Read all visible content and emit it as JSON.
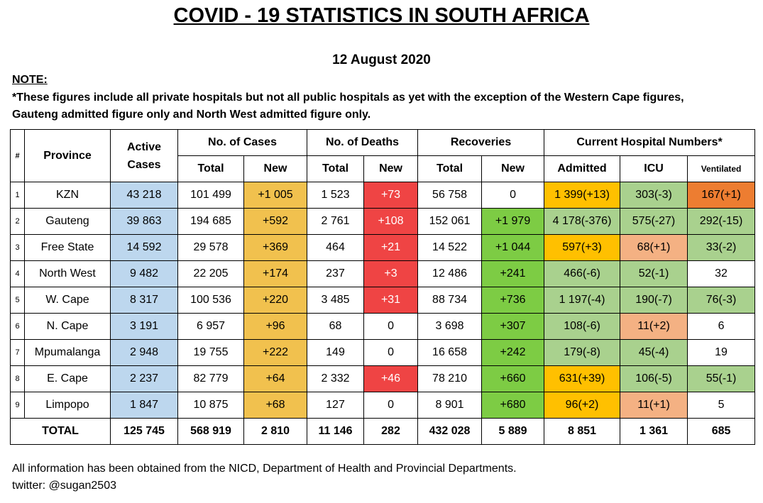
{
  "title": "COVID - 19 STATISTICS IN SOUTH AFRICA",
  "date": "12 August 2020",
  "note_label": "NOTE:",
  "note_line1": "*These figures include all private hospitals but not all public hospitals as yet with the exception of the Western Cape figures,",
  "note_line2": "Gauteng admitted figure only and North West admitted figure only.",
  "headers": {
    "hash": "#",
    "province": "Province",
    "active_line1": "Active",
    "active_line2": "Cases",
    "cases": "No. of Cases",
    "deaths": "No. of Deaths",
    "recoveries": "Recoveries",
    "hospital": "Current Hospital Numbers*",
    "total": "Total",
    "new": "New",
    "admitted": "Admitted",
    "icu": "ICU",
    "ventilated": "Ventilated"
  },
  "rows": [
    {
      "idx": "1",
      "province": "KZN",
      "active": "43 218",
      "cases_total": "101 499",
      "cases_new": "+1 005",
      "deaths_total": "1 523",
      "deaths_new": "+73",
      "rec_total": "56 758",
      "rec_new": "0",
      "admitted": "1 399(+13)",
      "icu": "303(-3)",
      "ventilated": "167(+1)"
    },
    {
      "idx": "2",
      "province": "Gauteng",
      "active": "39 863",
      "cases_total": "194 685",
      "cases_new": "+592",
      "deaths_total": "2 761",
      "deaths_new": "+108",
      "rec_total": "152 061",
      "rec_new": "+1 979",
      "admitted": "4 178(-376)",
      "icu": "575(-27)",
      "ventilated": "292(-15)"
    },
    {
      "idx": "3",
      "province": "Free State",
      "active": "14 592",
      "cases_total": "29 578",
      "cases_new": "+369",
      "deaths_total": "464",
      "deaths_new": "+21",
      "rec_total": "14 522",
      "rec_new": "+1 044",
      "admitted": "597(+3)",
      "icu": "68(+1)",
      "ventilated": "33(-2)"
    },
    {
      "idx": "4",
      "province": "North West",
      "active": "9 482",
      "cases_total": "22 205",
      "cases_new": "+174",
      "deaths_total": "237",
      "deaths_new": "+3",
      "rec_total": "12 486",
      "rec_new": "+241",
      "admitted": "466(-6)",
      "icu": "52(-1)",
      "ventilated": "32"
    },
    {
      "idx": "5",
      "province": "W. Cape",
      "active": "8 317",
      "cases_total": "100 536",
      "cases_new": "+220",
      "deaths_total": "3 485",
      "deaths_new": "+31",
      "rec_total": "88 734",
      "rec_new": "+736",
      "admitted": "1 197(-4)",
      "icu": "190(-7)",
      "ventilated": "76(-3)"
    },
    {
      "idx": "6",
      "province": "N. Cape",
      "active": "3 191",
      "cases_total": "6 957",
      "cases_new": "+96",
      "deaths_total": "68",
      "deaths_new": "0",
      "rec_total": "3 698",
      "rec_new": "+307",
      "admitted": "108(-6)",
      "icu": "11(+2)",
      "ventilated": "6"
    },
    {
      "idx": "7",
      "province": "Mpumalanga",
      "active": "2 948",
      "cases_total": "19 755",
      "cases_new": "+222",
      "deaths_total": "149",
      "deaths_new": "0",
      "rec_total": "16 658",
      "rec_new": "+242",
      "admitted": "179(-8)",
      "icu": "45(-4)",
      "ventilated": "19"
    },
    {
      "idx": "8",
      "province": "E. Cape",
      "active": "2 237",
      "cases_total": "82 779",
      "cases_new": "+64",
      "deaths_total": "2 332",
      "deaths_new": "+46",
      "rec_total": "78 210",
      "rec_new": "+660",
      "admitted": "631(+39)",
      "icu": "106(-5)",
      "ventilated": "55(-1)"
    },
    {
      "idx": "9",
      "province": "Limpopo",
      "active": "1 847",
      "cases_total": "10 875",
      "cases_new": "+68",
      "deaths_total": "127",
      "deaths_new": "0",
      "rec_total": "8 901",
      "rec_new": "+680",
      "admitted": "96(+2)",
      "icu": "11(+1)",
      "ventilated": "5"
    }
  ],
  "totals": {
    "label": "TOTAL",
    "active": "125 745",
    "cases_total": "568 919",
    "cases_new": "2 810",
    "deaths_total": "11 146",
    "deaths_new": "282",
    "rec_total": "432 028",
    "rec_new": "5 889",
    "admitted": "8 851",
    "icu": "1 361",
    "ventilated": "685"
  },
  "footer_line1": "All information has been obtained from the NICD, Department of Health and Provincial Departments.",
  "footer_line2": "twitter: @sugan2503",
  "colors": {
    "active": "#bdd7ee",
    "cases_new": "#f1c14e",
    "deaths_new_red": "#ef4444",
    "recoveries_new_green": "#7dcc44",
    "hospital_orange": "#ffc000",
    "hospital_light_green": "#a9d18e",
    "hospital_salmon": "#f4b183",
    "hospital_dark_orange": "#ed7d31"
  }
}
